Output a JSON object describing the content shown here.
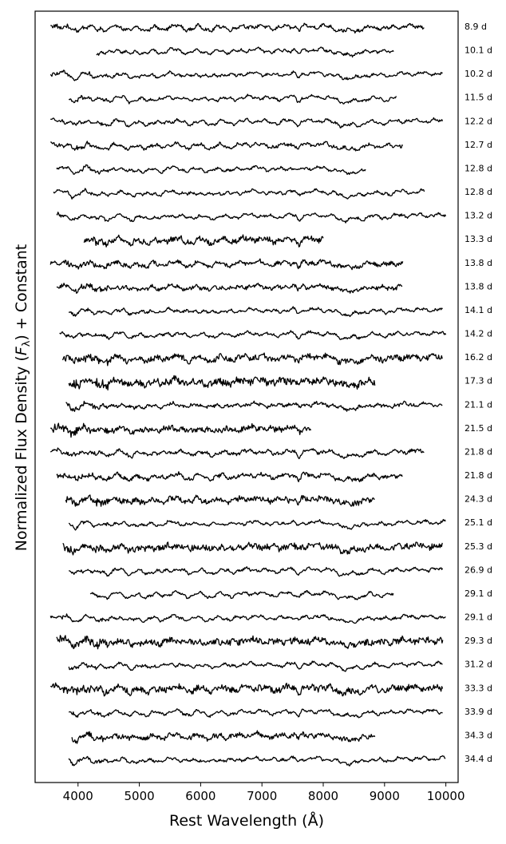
{
  "chart_data": {
    "type": "line",
    "title": "",
    "xlabel": "Rest Wavelength (Å)",
    "ylabel": "Normalized Flux Density (Fλ) + Constant",
    "ylabel_parts": [
      "Normalized Flux Density (",
      "F",
      "λ",
      ") + Constant"
    ],
    "xlim": [
      3300,
      10200
    ],
    "xticks": [
      4000,
      5000,
      6000,
      7000,
      8000,
      9000,
      10000
    ],
    "xtick_labels": [
      "4000",
      "5000",
      "6000",
      "7000",
      "8000",
      "9000",
      "10000"
    ],
    "grid": false,
    "legend": "none",
    "series": [
      {
        "label": "8.9 d",
        "range": [
          3550,
          9650
        ],
        "noise": 0.4
      },
      {
        "label": "10.1 d",
        "range": [
          4300,
          9150
        ],
        "noise": 0.3
      },
      {
        "label": "10.2 d",
        "range": [
          3550,
          9950
        ],
        "noise": 0.3
      },
      {
        "label": "11.5 d",
        "range": [
          3850,
          9200
        ],
        "noise": 0.3
      },
      {
        "label": "12.2 d",
        "range": [
          3550,
          9950
        ],
        "noise": 0.3
      },
      {
        "label": "12.7 d",
        "range": [
          3550,
          9300
        ],
        "noise": 0.4
      },
      {
        "label": "12.8 d",
        "range": [
          3650,
          8700
        ],
        "noise": 0.3
      },
      {
        "label": "12.8 d",
        "range": [
          3600,
          9650
        ],
        "noise": 0.3
      },
      {
        "label": "13.2 d",
        "range": [
          3650,
          10000
        ],
        "noise": 0.3
      },
      {
        "label": "13.3 d",
        "range": [
          4100,
          8000
        ],
        "noise": 0.7
      },
      {
        "label": "13.8 d",
        "range": [
          3550,
          9300
        ],
        "noise": 0.5
      },
      {
        "label": "13.8 d",
        "range": [
          3650,
          9300
        ],
        "noise": 0.5
      },
      {
        "label": "14.1 d",
        "range": [
          3850,
          9950
        ],
        "noise": 0.3
      },
      {
        "label": "14.2 d",
        "range": [
          3700,
          10000
        ],
        "noise": 0.3
      },
      {
        "label": "16.2 d",
        "range": [
          3750,
          9950
        ],
        "noise": 0.7
      },
      {
        "label": "17.3 d",
        "range": [
          3850,
          8850
        ],
        "noise": 0.9
      },
      {
        "label": "21.1 d",
        "range": [
          3800,
          9950
        ],
        "noise": 0.4
      },
      {
        "label": "21.5 d",
        "range": [
          3550,
          7800
        ],
        "noise": 0.7
      },
      {
        "label": "21.8 d",
        "range": [
          3550,
          9650
        ],
        "noise": 0.4
      },
      {
        "label": "21.8 d",
        "range": [
          3650,
          9300
        ],
        "noise": 0.5
      },
      {
        "label": "24.3 d",
        "range": [
          3800,
          8850
        ],
        "noise": 0.7
      },
      {
        "label": "25.1 d",
        "range": [
          3850,
          10000
        ],
        "noise": 0.3
      },
      {
        "label": "25.3 d",
        "range": [
          3750,
          9950
        ],
        "noise": 0.8
      },
      {
        "label": "26.9 d",
        "range": [
          3850,
          9950
        ],
        "noise": 0.3
      },
      {
        "label": "29.1 d",
        "range": [
          4200,
          9150
        ],
        "noise": 0.3
      },
      {
        "label": "29.1 d",
        "range": [
          3550,
          10000
        ],
        "noise": 0.3
      },
      {
        "label": "29.3 d",
        "range": [
          3650,
          9950
        ],
        "noise": 0.8
      },
      {
        "label": "31.2 d",
        "range": [
          3850,
          9950
        ],
        "noise": 0.3
      },
      {
        "label": "33.3 d",
        "range": [
          3550,
          9950
        ],
        "noise": 0.8
      },
      {
        "label": "33.9 d",
        "range": [
          3850,
          9950
        ],
        "noise": 0.3
      },
      {
        "label": "34.3 d",
        "range": [
          3900,
          8850
        ],
        "noise": 0.6
      },
      {
        "label": "34.4 d",
        "range": [
          3850,
          10000
        ],
        "noise": 0.3
      }
    ]
  }
}
